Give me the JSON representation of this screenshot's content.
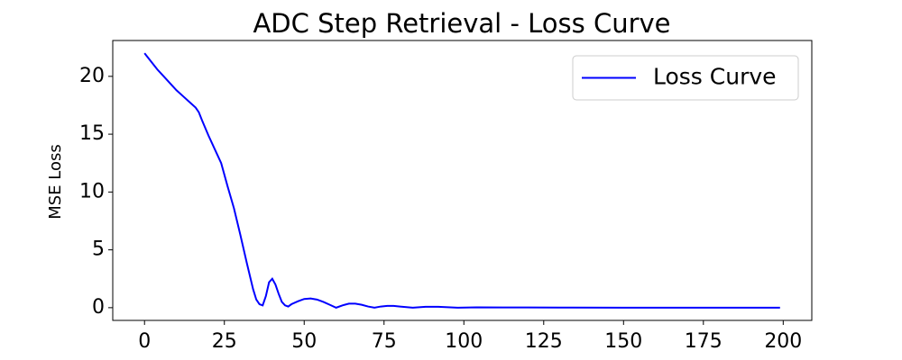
{
  "chart_data": {
    "type": "line",
    "title": "ADC Step Retrieval - Loss Curve",
    "y_label": "MSE Loss",
    "x": [
      0,
      2,
      4,
      6,
      8,
      10,
      12,
      14,
      16,
      17,
      18,
      20,
      22,
      24,
      26,
      28,
      30,
      32,
      34,
      35,
      36,
      37,
      38,
      39,
      40,
      41,
      42,
      43,
      44,
      45,
      46,
      48,
      50,
      52,
      54,
      56,
      58,
      60,
      62,
      64,
      66,
      68,
      70,
      72,
      74,
      76,
      78,
      80,
      84,
      88,
      92,
      98,
      104,
      112,
      120,
      130,
      150,
      175,
      199
    ],
    "series": [
      {
        "name": "Loss Curve",
        "color": "#0000ff",
        "values": [
          22,
          21.3,
          20.6,
          20.0,
          19.4,
          18.8,
          18.3,
          17.8,
          17.3,
          16.9,
          16.2,
          14.9,
          13.7,
          12.5,
          10.5,
          8.6,
          6.3,
          3.9,
          1.6,
          0.7,
          0.3,
          0.2,
          1.0,
          2.2,
          2.5,
          2.0,
          1.2,
          0.5,
          0.2,
          0.1,
          0.3,
          0.55,
          0.75,
          0.8,
          0.7,
          0.5,
          0.25,
          0.0,
          0.2,
          0.35,
          0.35,
          0.25,
          0.1,
          0.0,
          0.1,
          0.15,
          0.15,
          0.1,
          0.0,
          0.08,
          0.08,
          0.0,
          0.03,
          0.02,
          0.02,
          0.01,
          0.0,
          0.0,
          0.0
        ]
      }
    ],
    "xlim": [
      -9.95,
      208.95
    ],
    "xticks": [
      0,
      25,
      50,
      75,
      100,
      125,
      150,
      175,
      200
    ],
    "ylim": [
      -1.1,
      23.1
    ],
    "yticks": [
      0,
      5,
      10,
      15,
      20
    ],
    "legend": "upper right"
  }
}
